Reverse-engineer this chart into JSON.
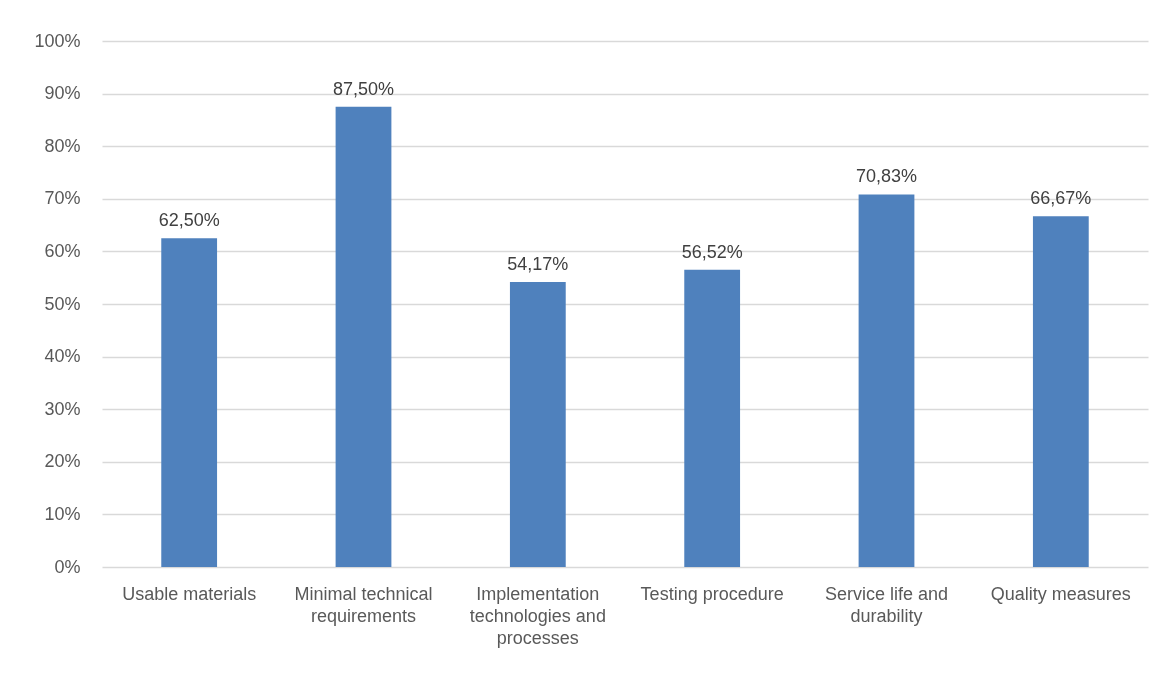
{
  "chart_data": {
    "type": "bar",
    "categories": [
      "Usable materials",
      "Minimal technical requirements",
      "Implementation technologies and processes",
      "Testing procedure",
      "Service life and durability",
      "Quality measures"
    ],
    "values": [
      62.5,
      87.5,
      54.17,
      56.52,
      70.83,
      66.67
    ],
    "value_labels": [
      "62,50%",
      "87,50%",
      "54,17%",
      "56,52%",
      "70,83%",
      "66,67%"
    ],
    "color": "#4f81bd",
    "ylim": [
      0,
      100
    ],
    "yticks": [
      {
        "value": 0,
        "label": "0%"
      },
      {
        "value": 10,
        "label": "10%"
      },
      {
        "value": 20,
        "label": "20%"
      },
      {
        "value": 30,
        "label": "30%"
      },
      {
        "value": 40,
        "label": "40%"
      },
      {
        "value": 50,
        "label": "50%"
      },
      {
        "value": 60,
        "label": "60%"
      },
      {
        "value": 70,
        "label": "70%"
      },
      {
        "value": 80,
        "label": "80%"
      },
      {
        "value": 90,
        "label": "90%"
      },
      {
        "value": 100,
        "label": "100%"
      }
    ],
    "grid": "y"
  }
}
